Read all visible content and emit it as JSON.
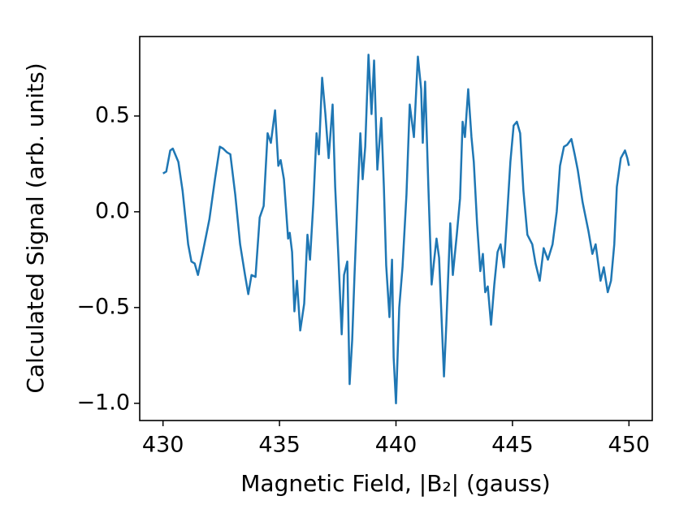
{
  "chart_data": {
    "type": "line",
    "xlabel": "Magnetic Field, |B₂| (gauss)",
    "ylabel": "Calculated Signal (arb. units)",
    "x": [
      430.0,
      430.14,
      430.31,
      430.42,
      430.66,
      430.84,
      431.08,
      431.22,
      431.36,
      431.5,
      431.71,
      431.99,
      432.23,
      432.44,
      432.58,
      432.75,
      432.89,
      433.1,
      433.31,
      433.52,
      433.66,
      433.8,
      433.97,
      434.15,
      434.32,
      434.49,
      434.63,
      434.81,
      434.95,
      435.05,
      435.19,
      435.37,
      435.44,
      435.54,
      435.64,
      435.75,
      435.89,
      436.06,
      436.2,
      436.31,
      436.45,
      436.59,
      436.69,
      436.83,
      436.97,
      437.11,
      437.28,
      437.39,
      437.53,
      437.67,
      437.77,
      437.91,
      438.01,
      438.12,
      438.22,
      438.36,
      438.47,
      438.57,
      438.68,
      438.82,
      438.95,
      439.06,
      439.2,
      439.37,
      439.48,
      439.58,
      439.72,
      439.83,
      439.9,
      440.0,
      440.14,
      440.28,
      440.45,
      440.59,
      440.77,
      440.94,
      441.08,
      441.15,
      441.25,
      441.39,
      441.53,
      441.64,
      441.74,
      441.85,
      442.06,
      442.16,
      442.33,
      442.44,
      442.61,
      442.75,
      442.86,
      442.96,
      443.1,
      443.24,
      443.34,
      443.48,
      443.62,
      443.73,
      443.83,
      443.94,
      444.08,
      444.22,
      444.36,
      444.49,
      444.63,
      444.77,
      444.91,
      445.05,
      445.19,
      445.33,
      445.47,
      445.64,
      445.85,
      445.99,
      446.17,
      446.34,
      446.52,
      446.72,
      446.9,
      447.04,
      447.21,
      447.35,
      447.53,
      447.67,
      447.8,
      448.01,
      448.26,
      448.43,
      448.57,
      448.78,
      448.92,
      449.09,
      449.23,
      449.37,
      449.48,
      449.65,
      449.83,
      449.93,
      450.0
    ],
    "series": [
      {
        "color": "#1f77b4",
        "values": [
          0.2,
          0.21,
          0.32,
          0.33,
          0.26,
          0.11,
          -0.17,
          -0.26,
          -0.27,
          -0.33,
          -0.21,
          -0.04,
          0.17,
          0.34,
          0.33,
          0.31,
          0.3,
          0.09,
          -0.17,
          -0.33,
          -0.43,
          -0.33,
          -0.34,
          -0.03,
          0.03,
          0.41,
          0.36,
          0.53,
          0.24,
          0.27,
          0.17,
          -0.14,
          -0.11,
          -0.21,
          -0.52,
          -0.36,
          -0.62,
          -0.48,
          -0.12,
          -0.25,
          0.04,
          0.41,
          0.3,
          0.7,
          0.51,
          0.28,
          0.56,
          0.13,
          -0.24,
          -0.64,
          -0.33,
          -0.26,
          -0.9,
          -0.67,
          -0.33,
          0.1,
          0.41,
          0.17,
          0.34,
          0.82,
          0.51,
          0.79,
          0.22,
          0.49,
          0.13,
          -0.28,
          -0.55,
          -0.25,
          -0.76,
          -1.0,
          -0.5,
          -0.29,
          0.09,
          0.56,
          0.39,
          0.81,
          0.64,
          0.36,
          0.68,
          0.13,
          -0.38,
          -0.25,
          -0.14,
          -0.24,
          -0.86,
          -0.59,
          -0.06,
          -0.33,
          -0.12,
          0.07,
          0.47,
          0.39,
          0.64,
          0.39,
          0.26,
          -0.06,
          -0.31,
          -0.22,
          -0.42,
          -0.39,
          -0.59,
          -0.38,
          -0.21,
          -0.17,
          -0.29,
          -0.02,
          0.26,
          0.45,
          0.47,
          0.41,
          0.11,
          -0.12,
          -0.17,
          -0.27,
          -0.36,
          -0.19,
          -0.25,
          -0.17,
          0.0,
          0.24,
          0.34,
          0.35,
          0.38,
          0.3,
          0.22,
          0.05,
          -0.1,
          -0.22,
          -0.17,
          -0.36,
          -0.29,
          -0.42,
          -0.36,
          -0.17,
          0.13,
          0.28,
          0.32,
          0.28,
          0.24
        ]
      }
    ],
    "xlim": [
      429,
      451
    ],
    "ylim": [
      -1.09,
      0.915
    ],
    "xticks": [
      430,
      435,
      440,
      445,
      450
    ],
    "yticks": [
      {
        "value": -1.0,
        "label": "−1.0"
      },
      {
        "value": -0.5,
        "label": "−0.5"
      },
      {
        "value": 0.0,
        "label": "0.0"
      },
      {
        "value": 0.5,
        "label": "0.5"
      }
    ],
    "grid": false
  }
}
